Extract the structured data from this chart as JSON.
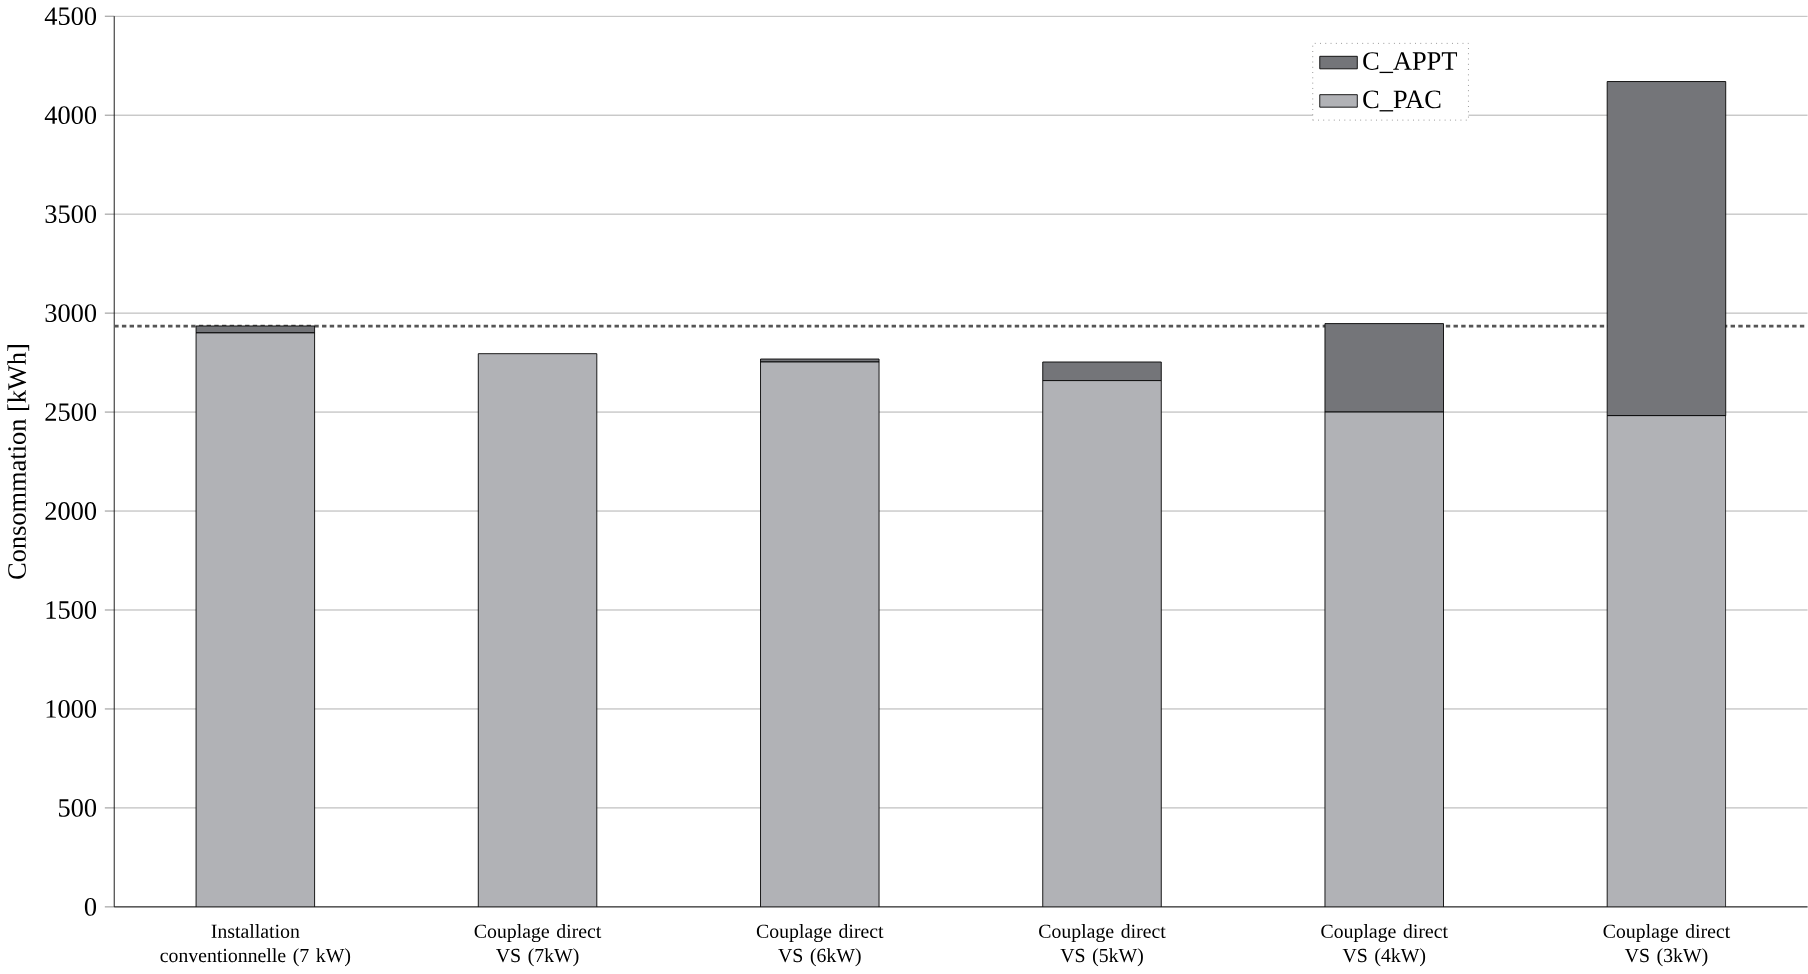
{
  "chart_data": {
    "type": "bar",
    "stacked": true,
    "ylabel": "Consommation [kWh]",
    "categories": [
      "Installation conventionnelle (7 kW)",
      "Couplage direct VS (7kW)",
      "Couplage direct VS (6kW)",
      "Couplage direct VS (5kW)",
      "Couplage direct VS (4kW)",
      "Couplage direct VS (3kW)"
    ],
    "series": [
      {
        "name": "C_PAC",
        "color": "#b1b2b6",
        "values": [
          2900,
          2795,
          2753,
          2659,
          2500,
          2482
        ]
      },
      {
        "name": "C_APPT",
        "color": "#747579",
        "values": [
          35,
          0,
          15,
          94,
          447,
          1688
        ]
      }
    ],
    "ylim": [
      0,
      4500
    ],
    "yticks": [
      0,
      500,
      1000,
      1500,
      2000,
      2500,
      3000,
      3500,
      4000,
      4500
    ],
    "grid": "y",
    "legend": "top right",
    "ref_lines": [
      {
        "axis": "y",
        "value": 2935,
        "color": "#555555",
        "line_style": "dotted"
      }
    ]
  }
}
